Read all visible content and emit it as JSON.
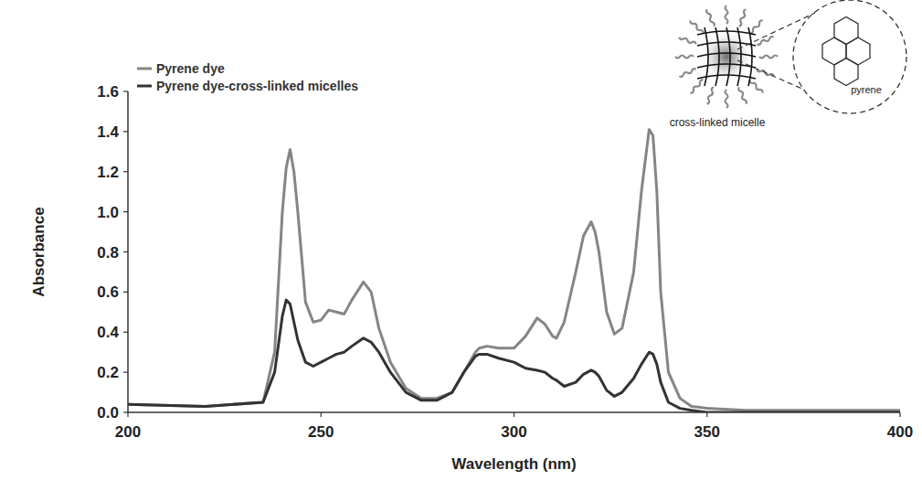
{
  "chart_data": {
    "type": "line",
    "x_label": "Wavelength (nm)",
    "y_label": "Absorbance",
    "x": [
      200,
      220,
      235,
      238,
      240,
      241,
      242,
      243,
      244,
      246,
      248,
      250,
      252,
      254,
      256,
      258,
      261,
      263,
      265,
      268,
      272,
      276,
      280,
      284,
      287,
      290,
      291,
      293,
      296,
      300,
      303,
      306,
      308,
      310,
      311,
      313,
      316,
      318,
      320,
      321,
      322,
      324,
      326,
      328,
      331,
      333,
      335,
      336,
      337,
      338,
      340,
      343,
      346,
      350,
      360,
      400
    ],
    "series": [
      {
        "name": "Pyrene dye",
        "color": "#858585",
        "values": [
          0.04,
          0.03,
          0.05,
          0.3,
          1.0,
          1.22,
          1.31,
          1.2,
          1.0,
          0.55,
          0.45,
          0.46,
          0.51,
          0.5,
          0.49,
          0.56,
          0.65,
          0.6,
          0.42,
          0.25,
          0.12,
          0.07,
          0.07,
          0.1,
          0.2,
          0.3,
          0.32,
          0.33,
          0.32,
          0.32,
          0.38,
          0.47,
          0.44,
          0.38,
          0.37,
          0.45,
          0.7,
          0.88,
          0.95,
          0.9,
          0.8,
          0.5,
          0.39,
          0.42,
          0.7,
          1.1,
          1.41,
          1.38,
          1.1,
          0.6,
          0.2,
          0.07,
          0.03,
          0.02,
          0.01,
          0.01
        ]
      },
      {
        "name": "Pyrene dye-cross-linked micelles",
        "color": "#333333",
        "values": [
          0.04,
          0.03,
          0.05,
          0.2,
          0.48,
          0.56,
          0.54,
          0.45,
          0.36,
          0.25,
          0.23,
          0.25,
          0.27,
          0.29,
          0.3,
          0.33,
          0.37,
          0.35,
          0.3,
          0.2,
          0.1,
          0.06,
          0.06,
          0.1,
          0.2,
          0.28,
          0.29,
          0.29,
          0.27,
          0.25,
          0.22,
          0.21,
          0.2,
          0.17,
          0.16,
          0.13,
          0.15,
          0.19,
          0.21,
          0.2,
          0.18,
          0.11,
          0.08,
          0.1,
          0.17,
          0.24,
          0.3,
          0.29,
          0.24,
          0.15,
          0.05,
          0.02,
          0.01,
          0,
          0,
          0
        ]
      }
    ],
    "xlim": [
      200,
      400
    ],
    "xticks": [
      200,
      250,
      300,
      350,
      400
    ],
    "ylim": [
      0,
      1.6
    ],
    "yticks": [
      {
        "value": 0,
        "label": "0.0"
      },
      {
        "value": 0.2,
        "label": "0.2"
      },
      {
        "value": 0.4,
        "label": "0.4"
      },
      {
        "value": 0.6,
        "label": "0.6"
      },
      {
        "value": 0.8,
        "label": "0.8"
      },
      {
        "value": 1.0,
        "label": "1.0"
      },
      {
        "value": 1.2,
        "label": "1.2"
      },
      {
        "value": 1.4,
        "label": "1.4"
      },
      {
        "value": 1.6,
        "label": "1.6"
      }
    ],
    "grid": false,
    "legend": "top-left",
    "annotations": [
      {
        "text": "cross-linked micelle"
      },
      {
        "text": "pyrene"
      }
    ]
  }
}
